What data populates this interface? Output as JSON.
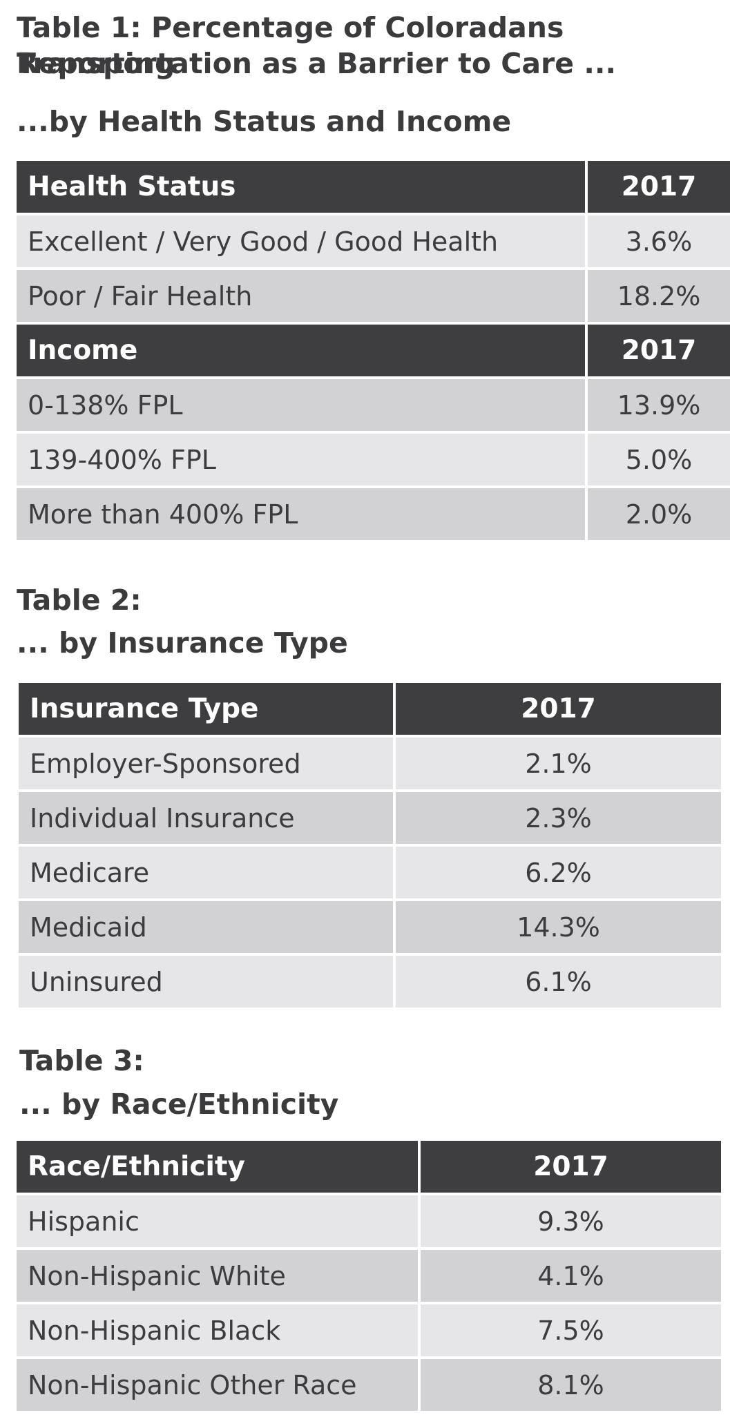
{
  "table1": {
    "title_line1": "Table 1: Percentage of Coloradans Reporting",
    "title_line2": "Transportation as a Barrier to Care ...",
    "subtitle": "...by Health Status and Income",
    "health_header": {
      "label": "Health Status",
      "year": "2017"
    },
    "health_rows": [
      {
        "label": "Excellent / Very Good / Good Health",
        "value": "3.6%"
      },
      {
        "label": "Poor / Fair Health",
        "value": "18.2%"
      }
    ],
    "income_header": {
      "label": "Income",
      "year": "2017"
    },
    "income_rows": [
      {
        "label": "0-138% FPL",
        "value": "13.9%"
      },
      {
        "label": "139-400% FPL",
        "value": "5.0%"
      },
      {
        "label": "More than 400% FPL",
        "value": "2.0%"
      }
    ]
  },
  "table2": {
    "title": "Table 2:",
    "subtitle": "... by Insurance Type",
    "header": {
      "label": "Insurance Type",
      "year": "2017"
    },
    "rows": [
      {
        "label": "Employer-Sponsored",
        "value": "2.1%"
      },
      {
        "label": "Individual Insurance",
        "value": "2.3%"
      },
      {
        "label": "Medicare",
        "value": "6.2%"
      },
      {
        "label": "Medicaid",
        "value": "14.3%"
      },
      {
        "label": "Uninsured",
        "value": "6.1%"
      }
    ]
  },
  "table3": {
    "title": "Table 3:",
    "subtitle": "... by Race/Ethnicity",
    "header": {
      "label": "Race/Ethnicity",
      "year": "2017"
    },
    "rows": [
      {
        "label": "Hispanic",
        "value": "9.3%"
      },
      {
        "label": "Non-Hispanic White",
        "value": "4.1%"
      },
      {
        "label": "Non-Hispanic Black",
        "value": "7.5%"
      },
      {
        "label": "Non-Hispanic Other Race",
        "value": "8.1%"
      }
    ]
  },
  "colors": {
    "header_bg": "#3e3e40",
    "row_light": "#e6e6e8",
    "row_dark": "#d2d2d4",
    "text": "#3c3c3e"
  }
}
